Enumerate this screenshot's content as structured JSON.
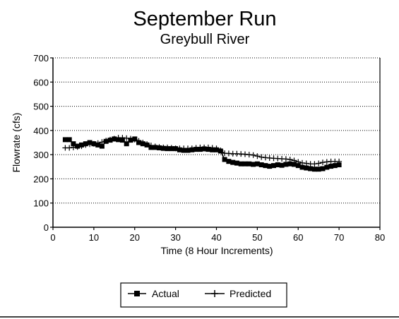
{
  "chart_data": {
    "type": "line",
    "title": "September Run",
    "subtitle": "Greybull River",
    "xlabel": "Time (8 Hour Increments)",
    "ylabel": "Flowrate (cfs)",
    "xlim": [
      0,
      80
    ],
    "ylim": [
      0,
      700
    ],
    "xticks": [
      0,
      10,
      20,
      30,
      40,
      50,
      60,
      70,
      80
    ],
    "yticks": [
      0,
      100,
      200,
      300,
      400,
      500,
      600,
      700
    ],
    "grid": "horizontal dotted",
    "legend_position": "bottom",
    "series": [
      {
        "name": "Actual",
        "marker": "square",
        "color": "#000000",
        "x": [
          3,
          4,
          5,
          6,
          7,
          8,
          9,
          10,
          11,
          12,
          13,
          14,
          15,
          16,
          17,
          18,
          19,
          20,
          21,
          22,
          23,
          24,
          25,
          26,
          27,
          28,
          29,
          30,
          31,
          32,
          33,
          34,
          35,
          36,
          37,
          38,
          39,
          40,
          41,
          42,
          43,
          44,
          45,
          46,
          47,
          48,
          49,
          50,
          51,
          52,
          53,
          54,
          55,
          56,
          57,
          58,
          59,
          60,
          61,
          62,
          63,
          64,
          65,
          66,
          67,
          68,
          69,
          70
        ],
        "values": [
          362,
          362,
          345,
          335,
          340,
          345,
          350,
          345,
          340,
          335,
          355,
          360,
          365,
          362,
          360,
          345,
          360,
          365,
          350,
          345,
          340,
          330,
          330,
          328,
          326,
          325,
          325,
          325,
          320,
          318,
          318,
          320,
          322,
          322,
          324,
          322,
          320,
          320,
          315,
          280,
          272,
          268,
          265,
          262,
          262,
          262,
          260,
          262,
          258,
          255,
          252,
          255,
          258,
          256,
          260,
          262,
          260,
          255,
          248,
          245,
          242,
          240,
          240,
          242,
          248,
          252,
          255,
          258
        ]
      },
      {
        "name": "Predicted",
        "marker": "plus",
        "color": "#000000",
        "x": [
          3,
          4,
          5,
          6,
          7,
          8,
          9,
          10,
          11,
          12,
          13,
          14,
          15,
          16,
          17,
          18,
          19,
          20,
          21,
          22,
          23,
          24,
          25,
          26,
          27,
          28,
          29,
          30,
          31,
          32,
          33,
          34,
          35,
          36,
          37,
          38,
          39,
          40,
          41,
          42,
          43,
          44,
          45,
          46,
          47,
          48,
          49,
          50,
          51,
          52,
          53,
          54,
          55,
          56,
          57,
          58,
          59,
          60,
          61,
          62,
          63,
          64,
          65,
          66,
          67,
          68,
          69,
          70
        ],
        "values": [
          328,
          328,
          330,
          332,
          335,
          340,
          343,
          345,
          348,
          352,
          358,
          362,
          366,
          370,
          370,
          368,
          366,
          362,
          357,
          350,
          344,
          338,
          334,
          332,
          330,
          330,
          328,
          326,
          326,
          326,
          326,
          326,
          328,
          330,
          330,
          330,
          328,
          326,
          318,
          306,
          305,
          304,
          304,
          303,
          302,
          300,
          298,
          294,
          290,
          288,
          286,
          285,
          284,
          283,
          282,
          280,
          276,
          270,
          266,
          264,
          262,
          262,
          264,
          268,
          270,
          272,
          272,
          272
        ]
      }
    ]
  }
}
